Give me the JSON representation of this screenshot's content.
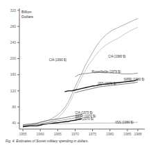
{
  "chart_data": {
    "type": "line",
    "title": "Billion\nDollars",
    "caption": "Fig. 4. Estimates of Soviet military spending in dollars.",
    "xlim": [
      1954,
      1990
    ],
    "ylim": [
      25,
      325
    ],
    "xticks": [
      1955,
      1960,
      1965,
      1970,
      1975,
      1980,
      1985,
      1988
    ],
    "yticks": [
      40,
      80,
      120,
      160,
      200,
      240,
      280,
      320
    ],
    "grid": false,
    "series": [
      {
        "color": "#999999",
        "x": [
          1955,
          1956,
          1957,
          1958,
          1959,
          1960,
          1961,
          1962,
          1963,
          1964,
          1965,
          1966,
          1967,
          1968,
          1969,
          1970,
          1971,
          1972,
          1973,
          1974,
          1975,
          1976,
          1977,
          1978,
          1979,
          1980,
          1981,
          1982,
          1983,
          1984,
          1985,
          1986,
          1987,
          1988
        ],
        "values": [
          36,
          37,
          38,
          39,
          40,
          42,
          44,
          46,
          50,
          55,
          60,
          68,
          78,
          92,
          110,
          130,
          148,
          165,
          185,
          200,
          215,
          230,
          242,
          252,
          260,
          267,
          272,
          276,
          280,
          284,
          288,
          292,
          296,
          300
        ]
      },
      {
        "color": "#bbbbbb",
        "x": [
          1955,
          1956,
          1957,
          1958,
          1959,
          1960,
          1961,
          1962,
          1963,
          1964,
          1965,
          1966,
          1967,
          1968,
          1969,
          1970,
          1971,
          1972,
          1973,
          1974,
          1975,
          1976,
          1977,
          1978,
          1979,
          1980,
          1981,
          1982,
          1983,
          1984,
          1985,
          1986,
          1987,
          1988
        ],
        "values": [
          33,
          34,
          35,
          36,
          37,
          38,
          39,
          41,
          44,
          48,
          53,
          61,
          71,
          84,
          100,
          120,
          138,
          155,
          172,
          186,
          198,
          210,
          220,
          228,
          235,
          240,
          245,
          249,
          254,
          260,
          265,
          270,
          274,
          278
        ]
      },
      {
        "color": "#777777",
        "x": [
          1970,
          1971,
          1972,
          1973,
          1974,
          1975,
          1976,
          1977,
          1978,
          1979,
          1980,
          1981,
          1982,
          1983,
          1984,
          1985,
          1986,
          1987,
          1988
        ],
        "values": [
          155,
          160,
          162,
          163,
          164,
          165,
          165,
          166,
          165,
          165,
          165,
          164,
          164,
          163,
          162,
          162,
          162,
          163,
          164
        ]
      },
      {
        "color": "#111111",
        "x": [
          1967,
          1968,
          1969,
          1970,
          1971,
          1972,
          1973,
          1974,
          1975,
          1976,
          1977,
          1978,
          1979,
          1980,
          1981,
          1982,
          1983,
          1984,
          1985,
          1986,
          1987,
          1988
        ],
        "values": [
          118,
          120,
          120,
          122,
          124,
          126,
          128,
          130,
          132,
          133,
          135,
          136,
          137,
          138,
          139,
          140,
          141,
          142,
          143,
          144,
          145,
          148
        ]
      },
      {
        "color": "#555555",
        "x": [
          1970,
          1971,
          1972,
          1973,
          1974,
          1975,
          1976,
          1977,
          1978,
          1979,
          1980,
          1981,
          1982,
          1983,
          1984,
          1985,
          1986,
          1987,
          1988
        ],
        "values": [
          115,
          118,
          120,
          122,
          124,
          126,
          128,
          130,
          131,
          132,
          133,
          134,
          135,
          136,
          137,
          138,
          139,
          140,
          142
        ]
      },
      {
        "color": "#555555",
        "x": [
          1955,
          1956,
          1957,
          1958,
          1959,
          1960,
          1961,
          1962,
          1963,
          1964,
          1965,
          1966,
          1967,
          1968,
          1969,
          1970,
          1971,
          1972
        ],
        "values": [
          35,
          36,
          37,
          38,
          39,
          42,
          44,
          46,
          48,
          49,
          50,
          52,
          53,
          55,
          57,
          58,
          60,
          62
        ]
      },
      {
        "color": "#888888",
        "x": [
          1955,
          1956,
          1957,
          1958,
          1959,
          1960,
          1961,
          1962,
          1963,
          1964,
          1965,
          1966,
          1967,
          1968,
          1969,
          1970,
          1971,
          1972
        ],
        "values": [
          33,
          34,
          35,
          35,
          36,
          38,
          40,
          41,
          43,
          44,
          46,
          47,
          48,
          50,
          51,
          53,
          55,
          57
        ]
      },
      {
        "color": "#111111",
        "x": [
          1955,
          1956,
          1957,
          1958,
          1959,
          1960,
          1961,
          1962,
          1963,
          1964,
          1965,
          1966,
          1967,
          1968,
          1969,
          1970,
          1971,
          1972
        ],
        "values": [
          31,
          32,
          33,
          33,
          33,
          35,
          37,
          38,
          39,
          40,
          41,
          42,
          43,
          44,
          46,
          47,
          49,
          51
        ]
      },
      {
        "color": "#aaaaaa",
        "x": [
          1955,
          1960,
          1965,
          1970,
          1975,
          1980,
          1985,
          1988
        ],
        "values": [
          35,
          38,
          38,
          39,
          40,
          40,
          41,
          42
        ]
      }
    ],
    "annotations": [
      {
        "text": "CIA (1990 $)",
        "x": 1962.5,
        "y": 196
      },
      {
        "text": "CIA (1980 $)",
        "x": 1979.5,
        "y": 205
      },
      {
        "text": "Rosenfielde (1979 $)",
        "x": 1974.8,
        "y": 168
      },
      {
        "text": "IISS (1970 $)",
        "x": 1976.5,
        "y": 138
      },
      {
        "text": "SIPRI (1980 $)",
        "x": 1984.0,
        "y": 148
      },
      {
        "text": "CIA (1970 $)",
        "x": 1970.0,
        "y": 65
      },
      {
        "text": "SIPRI (1970 $)",
        "x": 1970.0,
        "y": 57
      },
      {
        "text": "IISS (1970 $)",
        "x": 1970.0,
        "y": 50
      },
      {
        "text": "IISS (1980 $)",
        "x": 1981.5,
        "y": 41
      }
    ]
  }
}
